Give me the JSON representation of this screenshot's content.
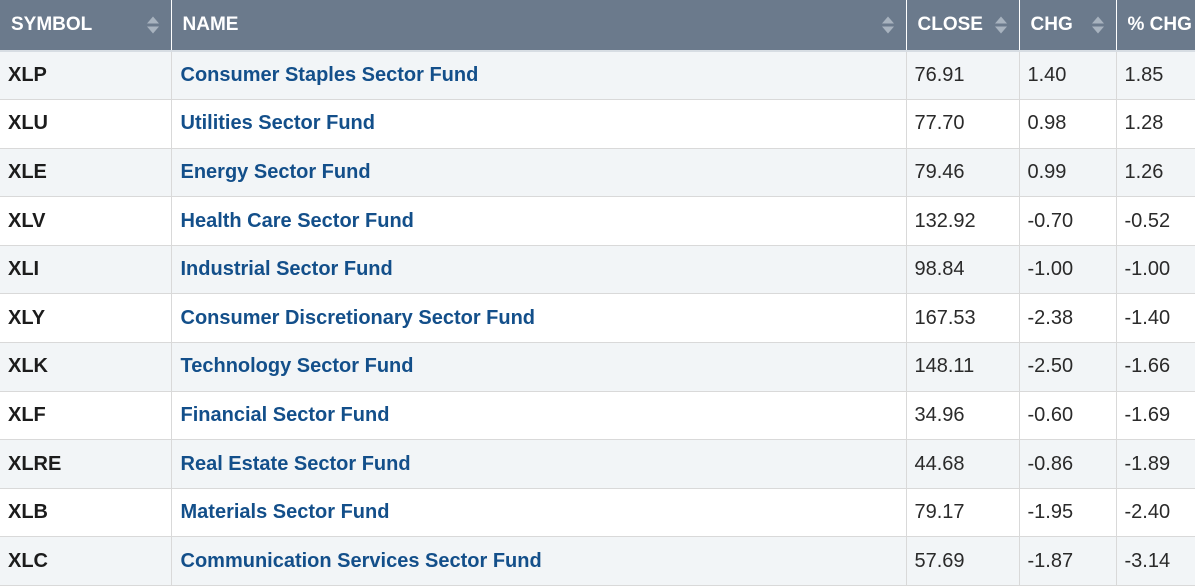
{
  "table": {
    "headers": {
      "symbol": "SYMBOL",
      "name": "NAME",
      "close": "CLOSE",
      "chg": "CHG",
      "pct_chg": "% CHG"
    },
    "sort_icon": "sort-arrows-icon",
    "rows": [
      {
        "symbol": "XLP",
        "name": "Consumer Staples Sector Fund",
        "close": "76.91",
        "chg": "1.40",
        "pct_chg": "1.85"
      },
      {
        "symbol": "XLU",
        "name": "Utilities Sector Fund",
        "close": "77.70",
        "chg": "0.98",
        "pct_chg": "1.28"
      },
      {
        "symbol": "XLE",
        "name": "Energy Sector Fund",
        "close": "79.46",
        "chg": "0.99",
        "pct_chg": "1.26"
      },
      {
        "symbol": "XLV",
        "name": "Health Care Sector Fund",
        "close": "132.92",
        "chg": "-0.70",
        "pct_chg": "-0.52"
      },
      {
        "symbol": "XLI",
        "name": "Industrial Sector Fund",
        "close": "98.84",
        "chg": "-1.00",
        "pct_chg": "-1.00"
      },
      {
        "symbol": "XLY",
        "name": "Consumer Discretionary Sector Fund",
        "close": "167.53",
        "chg": "-2.38",
        "pct_chg": "-1.40"
      },
      {
        "symbol": "XLK",
        "name": "Technology Sector Fund",
        "close": "148.11",
        "chg": "-2.50",
        "pct_chg": "-1.66"
      },
      {
        "symbol": "XLF",
        "name": "Financial Sector Fund",
        "close": "34.96",
        "chg": "-0.60",
        "pct_chg": "-1.69"
      },
      {
        "symbol": "XLRE",
        "name": "Real Estate Sector Fund",
        "close": "44.68",
        "chg": "-0.86",
        "pct_chg": "-1.89"
      },
      {
        "symbol": "XLB",
        "name": "Materials Sector Fund",
        "close": "79.17",
        "chg": "-1.95",
        "pct_chg": "-2.40"
      },
      {
        "symbol": "XLC",
        "name": "Communication Services Sector Fund",
        "close": "57.69",
        "chg": "-1.87",
        "pct_chg": "-3.14"
      }
    ]
  },
  "colors": {
    "header_bg": "#6b7a8c",
    "header_text": "#ffffff",
    "link": "#134f8a",
    "row_stripe": "#f2f5f7"
  }
}
